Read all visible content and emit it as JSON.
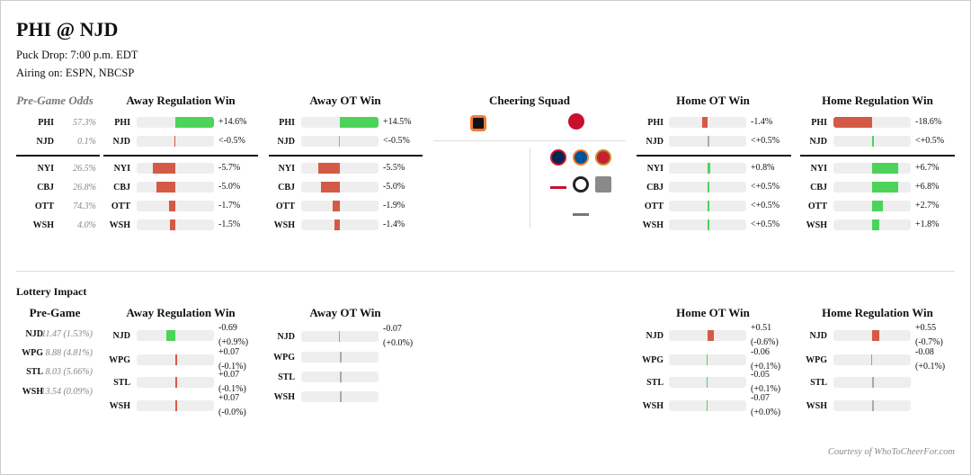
{
  "title": "PHI @ NJD",
  "puck_drop": "Puck Drop: 7:00 p.m. EDT",
  "airing": "Airing on: ESPN, NBCSP",
  "colors": {
    "good": "#4cd35a",
    "bad": "#d45a47",
    "neutral": "#aaa"
  },
  "pregame": {
    "header": "Pre-Game Odds",
    "rows": [
      {
        "team": "PHI",
        "odds": "57.3%"
      },
      {
        "team": "NJD",
        "odds": "0.1%"
      },
      {
        "team": "NYI",
        "odds": "26.5%"
      },
      {
        "team": "CBJ",
        "odds": "26.8%"
      },
      {
        "team": "OTT",
        "odds": "74.3%"
      },
      {
        "team": "WSH",
        "odds": "4.0%"
      }
    ]
  },
  "playoff_columns": [
    {
      "header": "Away Regulation Win",
      "rows": [
        {
          "team": "PHI",
          "value": "+14.6%",
          "change": 14.6,
          "tone": "good"
        },
        {
          "team": "NJD",
          "value": "<-0.5%",
          "change": -0.2,
          "tone": "bad"
        },
        {
          "team": "NYI",
          "value": "-5.7%",
          "change": -5.7,
          "tone": "bad"
        },
        {
          "team": "CBJ",
          "value": "-5.0%",
          "change": -5.0,
          "tone": "bad"
        },
        {
          "team": "OTT",
          "value": "-1.7%",
          "change": -1.7,
          "tone": "bad"
        },
        {
          "team": "WSH",
          "value": "-1.5%",
          "change": -1.5,
          "tone": "bad"
        }
      ]
    },
    {
      "header": "Away OT Win",
      "rows": [
        {
          "team": "PHI",
          "value": "+14.5%",
          "change": 14.5,
          "tone": "good"
        },
        {
          "team": "NJD",
          "value": "<-0.5%",
          "change": -0.2,
          "tone": "neutral"
        },
        {
          "team": "NYI",
          "value": "-5.5%",
          "change": -5.5,
          "tone": "bad"
        },
        {
          "team": "CBJ",
          "value": "-5.0%",
          "change": -5.0,
          "tone": "bad"
        },
        {
          "team": "OTT",
          "value": "-1.9%",
          "change": -1.9,
          "tone": "bad"
        },
        {
          "team": "WSH",
          "value": "-1.4%",
          "change": -1.4,
          "tone": "bad"
        }
      ]
    },
    {
      "header": "Home OT Win",
      "rows": [
        {
          "team": "PHI",
          "value": "-1.4%",
          "change": -1.4,
          "tone": "bad"
        },
        {
          "team": "NJD",
          "value": "<+0.5%",
          "change": 0.2,
          "tone": "neutral"
        },
        {
          "team": "NYI",
          "value": "+0.8%",
          "change": 0.8,
          "tone": "good"
        },
        {
          "team": "CBJ",
          "value": "<+0.5%",
          "change": 0.2,
          "tone": "good"
        },
        {
          "team": "OTT",
          "value": "<+0.5%",
          "change": 0.2,
          "tone": "good"
        },
        {
          "team": "WSH",
          "value": "<+0.5%",
          "change": 0.2,
          "tone": "good"
        }
      ]
    },
    {
      "header": "Home Regulation Win",
      "rows": [
        {
          "team": "PHI",
          "value": "-18.6%",
          "change": -18.6,
          "tone": "bad"
        },
        {
          "team": "NJD",
          "value": "<+0.5%",
          "change": 0.2,
          "tone": "good"
        },
        {
          "team": "NYI",
          "value": "+6.7%",
          "change": 6.7,
          "tone": "good"
        },
        {
          "team": "CBJ",
          "value": "+6.8%",
          "change": 6.8,
          "tone": "good"
        },
        {
          "team": "OTT",
          "value": "+2.7%",
          "change": 2.7,
          "tone": "good"
        },
        {
          "team": "WSH",
          "value": "+1.8%",
          "change": 1.8,
          "tone": "good"
        }
      ]
    }
  ],
  "cheering": {
    "header": "Cheering Squad",
    "away_logo": "Flyers",
    "home_logo": "Devils",
    "other_logos": [
      "Blue Jackets",
      "Islanders",
      "Senators",
      "Capitals",
      "Jets",
      "Blues",
      "Capitals"
    ]
  },
  "lottery": {
    "title": "Lottery Impact",
    "pregame_header": "Pre-Game",
    "pregame_rows": [
      {
        "team": "NJD",
        "value": "11.47 (1.53%)"
      },
      {
        "team": "WPG",
        "value": "8.88 (4.81%)"
      },
      {
        "team": "STL",
        "value": "8.03 (5.66%)"
      },
      {
        "team": "WSH",
        "value": "13.54 (0.09%)"
      }
    ],
    "columns": [
      {
        "header": "Away Regulation Win",
        "rows": [
          {
            "team": "NJD",
            "pick": "-0.69",
            "odds": "(+0.9%)",
            "change": -0.69,
            "tone": "good"
          },
          {
            "team": "WPG",
            "pick": "+0.07",
            "odds": "(-0.1%)",
            "change": 0.05,
            "tone": "bad"
          },
          {
            "team": "STL",
            "pick": "+0.07",
            "odds": "(-0.1%)",
            "change": 0.05,
            "tone": "bad"
          },
          {
            "team": "WSH",
            "pick": "+0.07",
            "odds": "(-0.0%)",
            "change": 0.05,
            "tone": "bad"
          }
        ]
      },
      {
        "header": "Away OT Win",
        "rows": [
          {
            "team": "NJD",
            "pick": "-0.07",
            "odds": "(+0.0%)",
            "change": -0.05,
            "tone": "good"
          },
          {
            "team": "WPG",
            "pick": "",
            "odds": "",
            "change": 0,
            "tone": "neutral"
          },
          {
            "team": "STL",
            "pick": "",
            "odds": "",
            "change": 0,
            "tone": "neutral"
          },
          {
            "team": "WSH",
            "pick": "",
            "odds": "",
            "change": 0,
            "tone": "neutral"
          }
        ]
      },
      {
        "header": "Home OT Win",
        "rows": [
          {
            "team": "NJD",
            "pick": "+0.51",
            "odds": "(-0.6%)",
            "change": 0.51,
            "tone": "bad"
          },
          {
            "team": "WPG",
            "pick": "-0.06",
            "odds": "(+0.1%)",
            "change": -0.05,
            "tone": "good"
          },
          {
            "team": "STL",
            "pick": "-0.05",
            "odds": "(+0.1%)",
            "change": -0.05,
            "tone": "good"
          },
          {
            "team": "WSH",
            "pick": "-0.07",
            "odds": "(+0.0%)",
            "change": -0.05,
            "tone": "good"
          }
        ]
      },
      {
        "header": "Home Regulation Win",
        "rows": [
          {
            "team": "NJD",
            "pick": "+0.55",
            "odds": "(-0.7%)",
            "change": 0.55,
            "tone": "bad"
          },
          {
            "team": "WPG",
            "pick": "-0.08",
            "odds": "(+0.1%)",
            "change": -0.05,
            "tone": "good"
          },
          {
            "team": "STL",
            "pick": "",
            "odds": "",
            "change": 0,
            "tone": "neutral"
          },
          {
            "team": "WSH",
            "pick": "",
            "odds": "",
            "change": 0,
            "tone": "neutral"
          }
        ]
      }
    ]
  },
  "footer": "Courtesy of WhoToCheerFor.com"
}
